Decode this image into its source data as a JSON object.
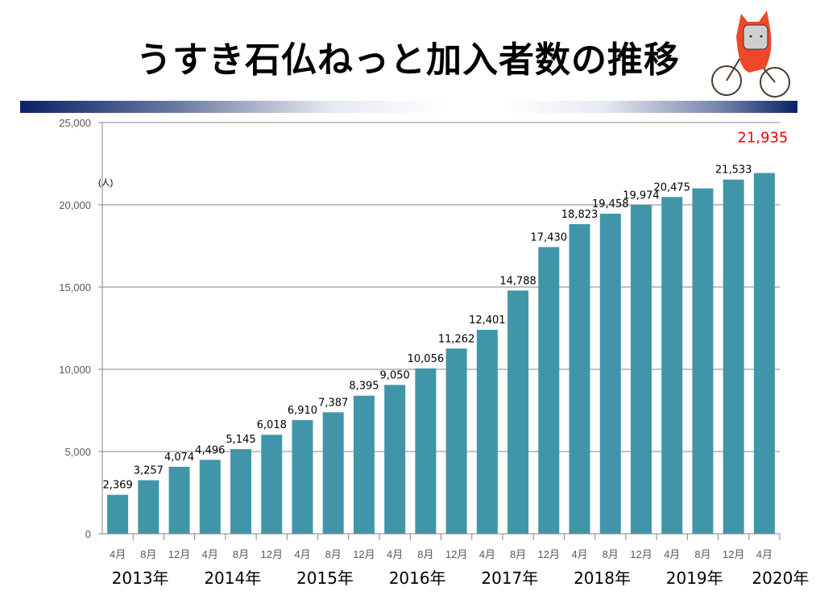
{
  "title": "うすき石仏ねっと加入者数の推移",
  "colors": {
    "bar": "#4096a8",
    "highlight": "#ff0000",
    "grid": "#868686"
  },
  "chart_data": {
    "type": "bar",
    "title": "うすき石仏ねっと加入者数の推移",
    "ylabel": "(人)",
    "ylim": [
      0,
      25000
    ],
    "yticks": [
      "0",
      "5,000",
      "10,000",
      "15,000",
      "20,000",
      "25,000"
    ],
    "ytick_values": [
      0,
      5000,
      10000,
      15000,
      20000,
      25000
    ],
    "grid": true,
    "categories": [
      "4月",
      "8月",
      "12月",
      "4月",
      "8月",
      "12月",
      "4月",
      "8月",
      "12月",
      "4月",
      "8月",
      "12月",
      "4月",
      "8月",
      "12月",
      "4月",
      "8月",
      "12月",
      "4月",
      "8月",
      "12月",
      "4月"
    ],
    "years": [
      "2013年",
      "2014年",
      "2015年",
      "2016年",
      "2017年",
      "2018年",
      "2019年",
      "2020年"
    ],
    "values": [
      2369,
      3257,
      4074,
      4496,
      5145,
      6018,
      6910,
      7387,
      8395,
      9050,
      10056,
      11262,
      12401,
      14788,
      17430,
      18823,
      19458,
      19974,
      20475,
      21000,
      21533,
      21935
    ],
    "labels": [
      "2,369",
      "3,257",
      "4,074",
      "4,496",
      "5,145",
      "6,018",
      "6,910",
      "7,387",
      "8,395",
      "9,050",
      "10,056",
      "11,262",
      "12,401",
      "14,788",
      "17,430",
      "18,823",
      "19,458",
      "19,974",
      "20,475",
      "",
      "21,533",
      "21,935"
    ],
    "highlight_index": 21
  }
}
